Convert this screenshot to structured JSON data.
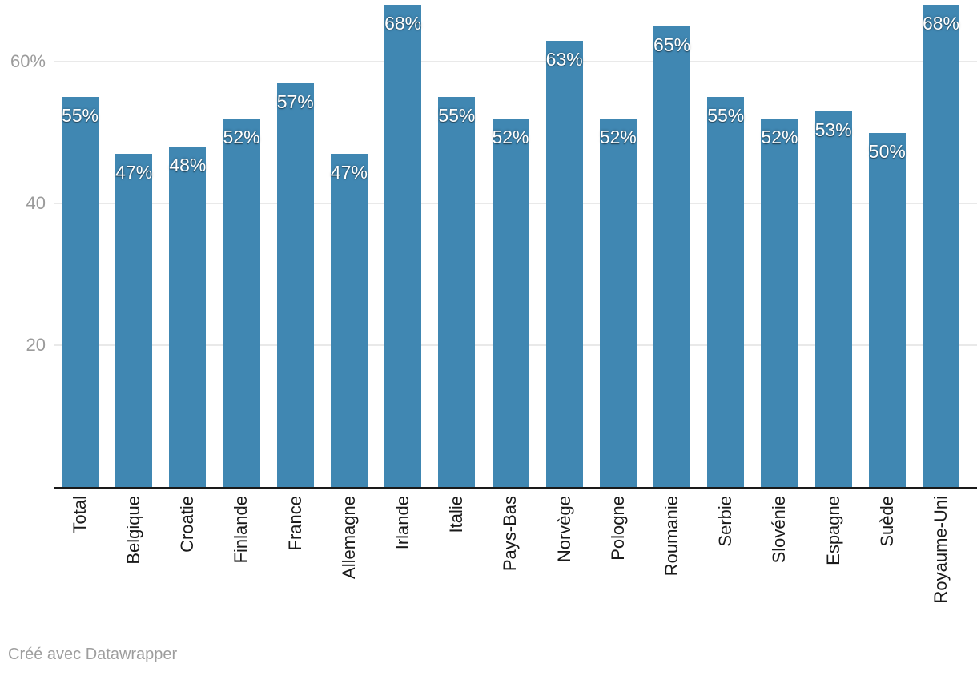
{
  "chart_data": {
    "type": "bar",
    "title": "",
    "xlabel": "",
    "ylabel": "",
    "categories": [
      "Total",
      "Belgique",
      "Croatie",
      "Finlande",
      "France",
      "Allemagne",
      "Irlande",
      "Italie",
      "Pays-Bas",
      "Norvège",
      "Pologne",
      "Roumanie",
      "Serbie",
      "Slovénie",
      "Espagne",
      "Suède",
      "Royaume-Uni"
    ],
    "values": [
      55,
      47,
      48,
      52,
      57,
      47,
      68,
      55,
      52,
      63,
      52,
      65,
      55,
      52,
      53,
      50,
      68
    ],
    "value_labels": [
      "55%",
      "47%",
      "48%",
      "52%",
      "57%",
      "47%",
      "68%",
      "55%",
      "52%",
      "63%",
      "52%",
      "65%",
      "55%",
      "52%",
      "53%",
      "50%",
      "68%"
    ],
    "ylim": [
      0,
      68.8
    ],
    "yticks": [
      {
        "value": 20,
        "label": "20"
      },
      {
        "value": 40,
        "label": "40"
      },
      {
        "value": 60,
        "label": "60%"
      }
    ],
    "grid": true,
    "legend": false,
    "bar_color": "#4087b2"
  },
  "colors": {
    "background": "#ffffff",
    "bar": "#4087b2",
    "gridline": "#e9e9e9",
    "axis_line": "#1a1a1a",
    "tick_label": "#9b9b9b",
    "category_label": "#1a1a1a",
    "value_label": "#ffffff",
    "credit": "#9e9e9e"
  },
  "footer": {
    "credit": "Créé avec Datawrapper"
  }
}
